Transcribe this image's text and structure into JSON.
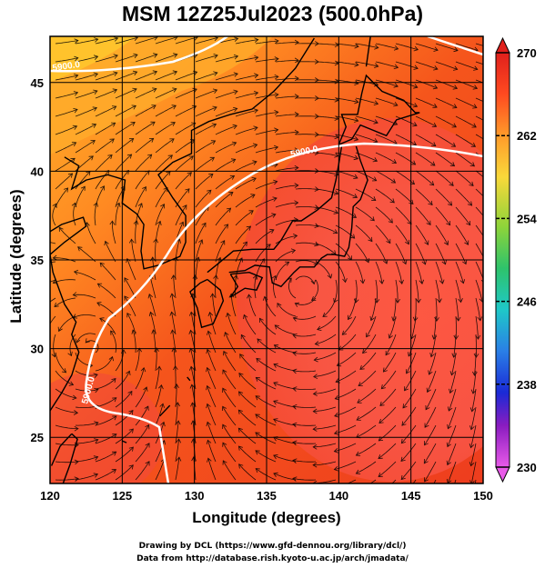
{
  "title": "MSM 12Z25Jul2023 (500.0hPa)",
  "xlabel": "Longitude (degrees)",
  "ylabel": "Latitude  (degrees)",
  "credits": [
    "Drawing by DCL (https://www.gfd-dennou.org/library/dcl/)",
    "Data from http://database.rish.kyoto-u.ac.jp/arch/jmadata/"
  ],
  "map": {
    "lon_range": [
      120,
      150
    ],
    "lat_range": [
      22.4,
      47.6
    ],
    "lon_ticks": [
      "120",
      "125",
      "130",
      "135",
      "140",
      "145",
      "150"
    ],
    "lat_ticks": [
      "25",
      "30",
      "35",
      "40",
      "45"
    ],
    "contour_labels": [
      "5900.0",
      "5900.0",
      "5900.0"
    ],
    "colorbar": {
      "ticks": [
        "270",
        "262",
        "254",
        "246",
        "238",
        "230"
      ],
      "colors": [
        "#e0201c",
        "#ff7b2d",
        "#ffc63a",
        "#d6e11c",
        "#3ec63c",
        "#20c7b4",
        "#2c86e6",
        "#1c2bd8",
        "#a020b8",
        "#e052e8"
      ]
    }
  }
}
